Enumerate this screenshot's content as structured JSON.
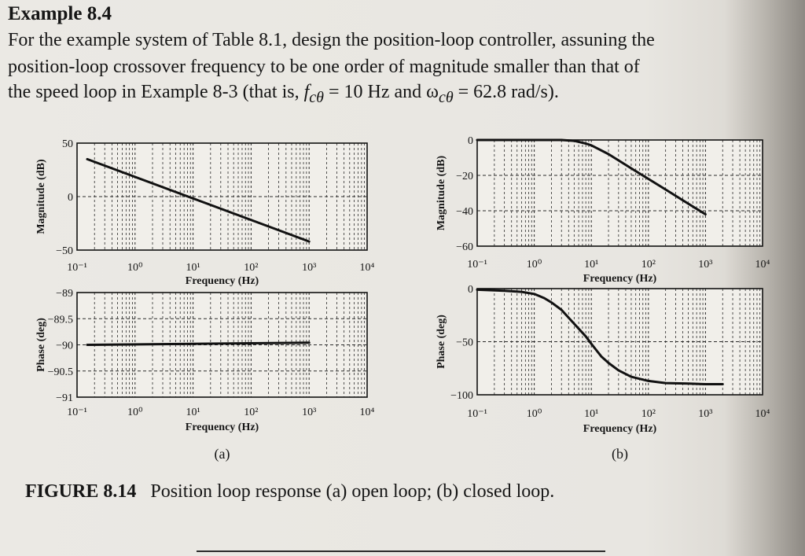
{
  "example": {
    "title": "Example 8.4",
    "line1": "For the example system of Table 8.1, design the position-loop controller, assuning the",
    "line2": "position-loop crossover frequency to be one order of magnitude smaller than that of",
    "line3_a": "the speed loop in Example 8-3 (that is, ",
    "line3_fc": "f",
    "line3_fc_sub": "cθ",
    "line3_b": " = 10 Hz and ω",
    "line3_wc_sub": "cθ",
    "line3_c": " = 62.8 rad/s)."
  },
  "figure": {
    "label": "FIGURE 8.14",
    "caption": "Position loop response (a) open loop; (b) closed loop.",
    "panel_a": "(a)",
    "panel_b": "(b)"
  },
  "chart_data": [
    {
      "type": "line",
      "panel": "(a)",
      "subplot": "magnitude",
      "xscale": "log",
      "xlim": [
        0.1,
        10000
      ],
      "ylim": [
        -50,
        50
      ],
      "ylabel": "Magnitude (dB)",
      "xlabel": "Frequency (Hz)",
      "xticks": [
        "10⁻¹",
        "10⁰",
        "10¹",
        "10²",
        "10³",
        "10⁴"
      ],
      "yticks": [
        "50",
        "0",
        "-50"
      ],
      "series": [
        {
          "x": [
            0.15,
            1000
          ],
          "y": [
            35,
            -42
          ]
        }
      ]
    },
    {
      "type": "line",
      "panel": "(a)",
      "subplot": "phase",
      "xscale": "log",
      "xlim": [
        0.1,
        10000
      ],
      "ylim": [
        -91,
        -89
      ],
      "ylabel": "Phase (deg)",
      "xlabel": "Frequency (Hz)",
      "xticks": [
        "10⁻¹",
        "10⁰",
        "10¹",
        "10²",
        "10³",
        "10⁴"
      ],
      "yticks": [
        "-89",
        "-89.5",
        "-90",
        "-90.5",
        "-91"
      ],
      "series": [
        {
          "x": [
            0.15,
            1000
          ],
          "y": [
            -90.0,
            -89.96
          ]
        }
      ]
    },
    {
      "type": "line",
      "panel": "(b)",
      "subplot": "magnitude",
      "xscale": "log",
      "xlim": [
        0.1,
        10000
      ],
      "ylim": [
        -60,
        0
      ],
      "ylabel": "Magnitude (dB)",
      "xlabel": "Frequency (Hz)",
      "xticks": [
        "10⁻¹",
        "10⁰",
        "10¹",
        "10²",
        "10³",
        "10⁴"
      ],
      "yticks": [
        "0",
        "-20",
        "-40",
        "-60"
      ],
      "series": [
        {
          "x": [
            0.1,
            1,
            3,
            5,
            8,
            10,
            20,
            50,
            100,
            200,
            500,
            1000
          ],
          "y": [
            0,
            0,
            0,
            -0.5,
            -2,
            -3,
            -8,
            -16,
            -22,
            -28,
            -36,
            -42
          ]
        }
      ]
    },
    {
      "type": "line",
      "panel": "(b)",
      "subplot": "phase",
      "xscale": "log",
      "xlim": [
        0.1,
        10000
      ],
      "ylim": [
        -100,
        0
      ],
      "ylabel": "Phase (deg)",
      "xlabel": "Frequency (Hz)",
      "xticks": [
        "10⁻¹",
        "10⁰",
        "10¹",
        "10²",
        "10³",
        "10⁴"
      ],
      "yticks": [
        "0",
        "-50",
        "-100"
      ],
      "series": [
        {
          "x": [
            0.1,
            0.3,
            0.6,
            1,
            1.5,
            2,
            3,
            5,
            8,
            10,
            15,
            20,
            30,
            50,
            100,
            200,
            500,
            1000,
            2000
          ],
          "y": [
            -1,
            -2,
            -3,
            -5,
            -9,
            -13,
            -20,
            -33,
            -45,
            -52,
            -64,
            -70,
            -77,
            -83,
            -87,
            -89,
            -89.5,
            -90,
            -90
          ]
        }
      ]
    }
  ]
}
